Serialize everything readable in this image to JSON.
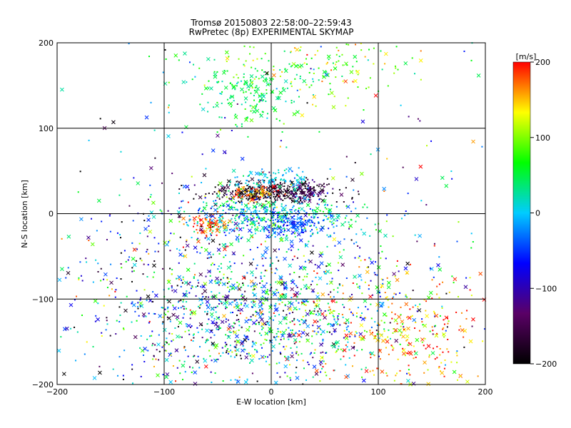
{
  "chart_data": {
    "type": "scatter",
    "title": "Tromsø 20150803 22:58:00–22:59:43",
    "subtitle": "RwPretec (8p) EXPERIMENTAL SKYMAP",
    "xlabel": "E-W location [km]",
    "ylabel": "N-S location [km]",
    "xlim": [
      -200,
      200
    ],
    "ylim": [
      -200,
      200
    ],
    "xticks": [
      -200,
      -100,
      0,
      100,
      200
    ],
    "yticks": [
      -200,
      -100,
      0,
      100,
      200
    ],
    "grid": true,
    "markers": [
      "dot",
      "x"
    ],
    "colorbar": {
      "label": "[m/s]",
      "min": -200,
      "max": 200,
      "ticks": [
        200,
        100,
        0,
        -100,
        -200
      ],
      "colors": [
        "#000000",
        "#5a0066",
        "#0000ff",
        "#00ccff",
        "#00ff00",
        "#ffff00",
        "#ff0000"
      ]
    },
    "clusters": [
      {
        "x": 0,
        "y": 25,
        "sx": 30,
        "sy": 6,
        "n": 320,
        "v": -185,
        "vs": 20
      },
      {
        "x": 30,
        "y": 25,
        "sx": 10,
        "sy": 6,
        "n": 60,
        "v": -135,
        "vs": 15
      },
      {
        "x": -25,
        "y": 22,
        "sx": 15,
        "sy": 5,
        "n": 70,
        "v": 170,
        "vs": 30
      },
      {
        "x": 0,
        "y": -5,
        "sx": 45,
        "sy": 12,
        "n": 460,
        "v": 10,
        "vs": 45
      },
      {
        "x": 20,
        "y": -12,
        "sx": 15,
        "sy": 8,
        "n": 110,
        "v": -55,
        "vs": 25
      },
      {
        "x": -60,
        "y": -12,
        "sx": 10,
        "sy": 6,
        "n": 70,
        "v": 175,
        "vs": 25
      },
      {
        "x": 0,
        "y": 40,
        "sx": 20,
        "sy": 6,
        "n": 90,
        "v": 5,
        "vs": 20
      },
      {
        "x": -20,
        "y": 140,
        "sx": 25,
        "sy": 20,
        "n": 170,
        "v": 45,
        "vs": 20
      },
      {
        "x": 30,
        "y": 170,
        "sx": 50,
        "sy": 20,
        "n": 160,
        "v": 90,
        "vs": 40
      },
      {
        "x": 0,
        "y": -120,
        "sx": 70,
        "sy": 45,
        "n": 1100,
        "v": 0,
        "vs": 95
      },
      {
        "x": 130,
        "y": -140,
        "sx": 40,
        "sy": 35,
        "n": 280,
        "v": 160,
        "vs": 40
      },
      {
        "x": -80,
        "y": -80,
        "sx": 60,
        "sy": 60,
        "n": 380,
        "v": -60,
        "vs": 110
      },
      {
        "x": 0,
        "y": 20,
        "sx": 160,
        "sy": 150,
        "n": 320,
        "v": 0,
        "vs": 120
      }
    ]
  }
}
